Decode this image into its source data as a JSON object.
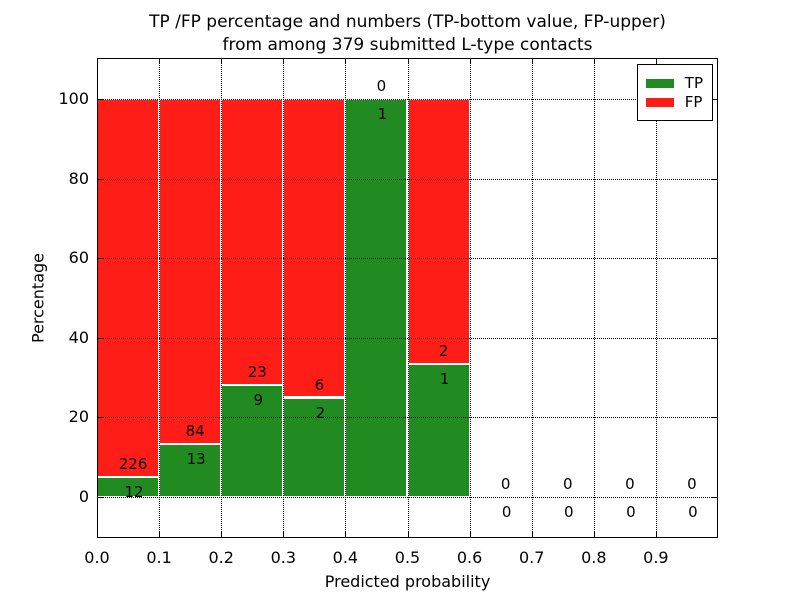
{
  "figure": {
    "title_line1": "TP /FP percentage and numbers (TP-bottom value, FP-upper)",
    "title_line2": "from among 379 submitted L-type contacts",
    "xlabel": "Predicted probability",
    "ylabel": "Percentage"
  },
  "chart_data": {
    "type": "bar",
    "stacked": true,
    "normalized_to_percent": true,
    "title": "TP /FP percentage and numbers (TP-bottom value, FP-upper) from among 379 submitted L-type contacts",
    "xlabel": "Predicted probability",
    "ylabel": "Percentage",
    "total_contacts": 379,
    "xlim": [
      0.0,
      1.0
    ],
    "ylim": [
      -10.3,
      110.3
    ],
    "x_tick_labels": [
      "0.0",
      "0.1",
      "0.2",
      "0.3",
      "0.4",
      "0.5",
      "0.6",
      "0.7",
      "0.8",
      "0.9"
    ],
    "y_tick_values": [
      0,
      20,
      40,
      60,
      80,
      100
    ],
    "grid_style": "dotted",
    "legend": {
      "position": "upper right",
      "entries": [
        {
          "label": "TP",
          "color": "#218a21"
        },
        {
          "label": "FP",
          "color": "#ff1d17"
        }
      ]
    },
    "bar_colors": {
      "tp": "#218a21",
      "fp": "#ff1d17"
    },
    "edge_color": "#ffffff",
    "bins": [
      {
        "range": [
          0.0,
          0.1
        ],
        "tp": 12,
        "fp": 226
      },
      {
        "range": [
          0.1,
          0.2
        ],
        "tp": 13,
        "fp": 84
      },
      {
        "range": [
          0.2,
          0.3
        ],
        "tp": 9,
        "fp": 23
      },
      {
        "range": [
          0.3,
          0.4
        ],
        "tp": 2,
        "fp": 6
      },
      {
        "range": [
          0.4,
          0.5
        ],
        "tp": 1,
        "fp": 0
      },
      {
        "range": [
          0.5,
          0.6
        ],
        "tp": 1,
        "fp": 2
      },
      {
        "range": [
          0.6,
          0.7
        ],
        "tp": 0,
        "fp": 0
      },
      {
        "range": [
          0.7,
          0.8
        ],
        "tp": 0,
        "fp": 0
      },
      {
        "range": [
          0.8,
          0.9
        ],
        "tp": 0,
        "fp": 0
      },
      {
        "range": [
          0.9,
          1.0
        ],
        "tp": 0,
        "fp": 0
      }
    ]
  }
}
